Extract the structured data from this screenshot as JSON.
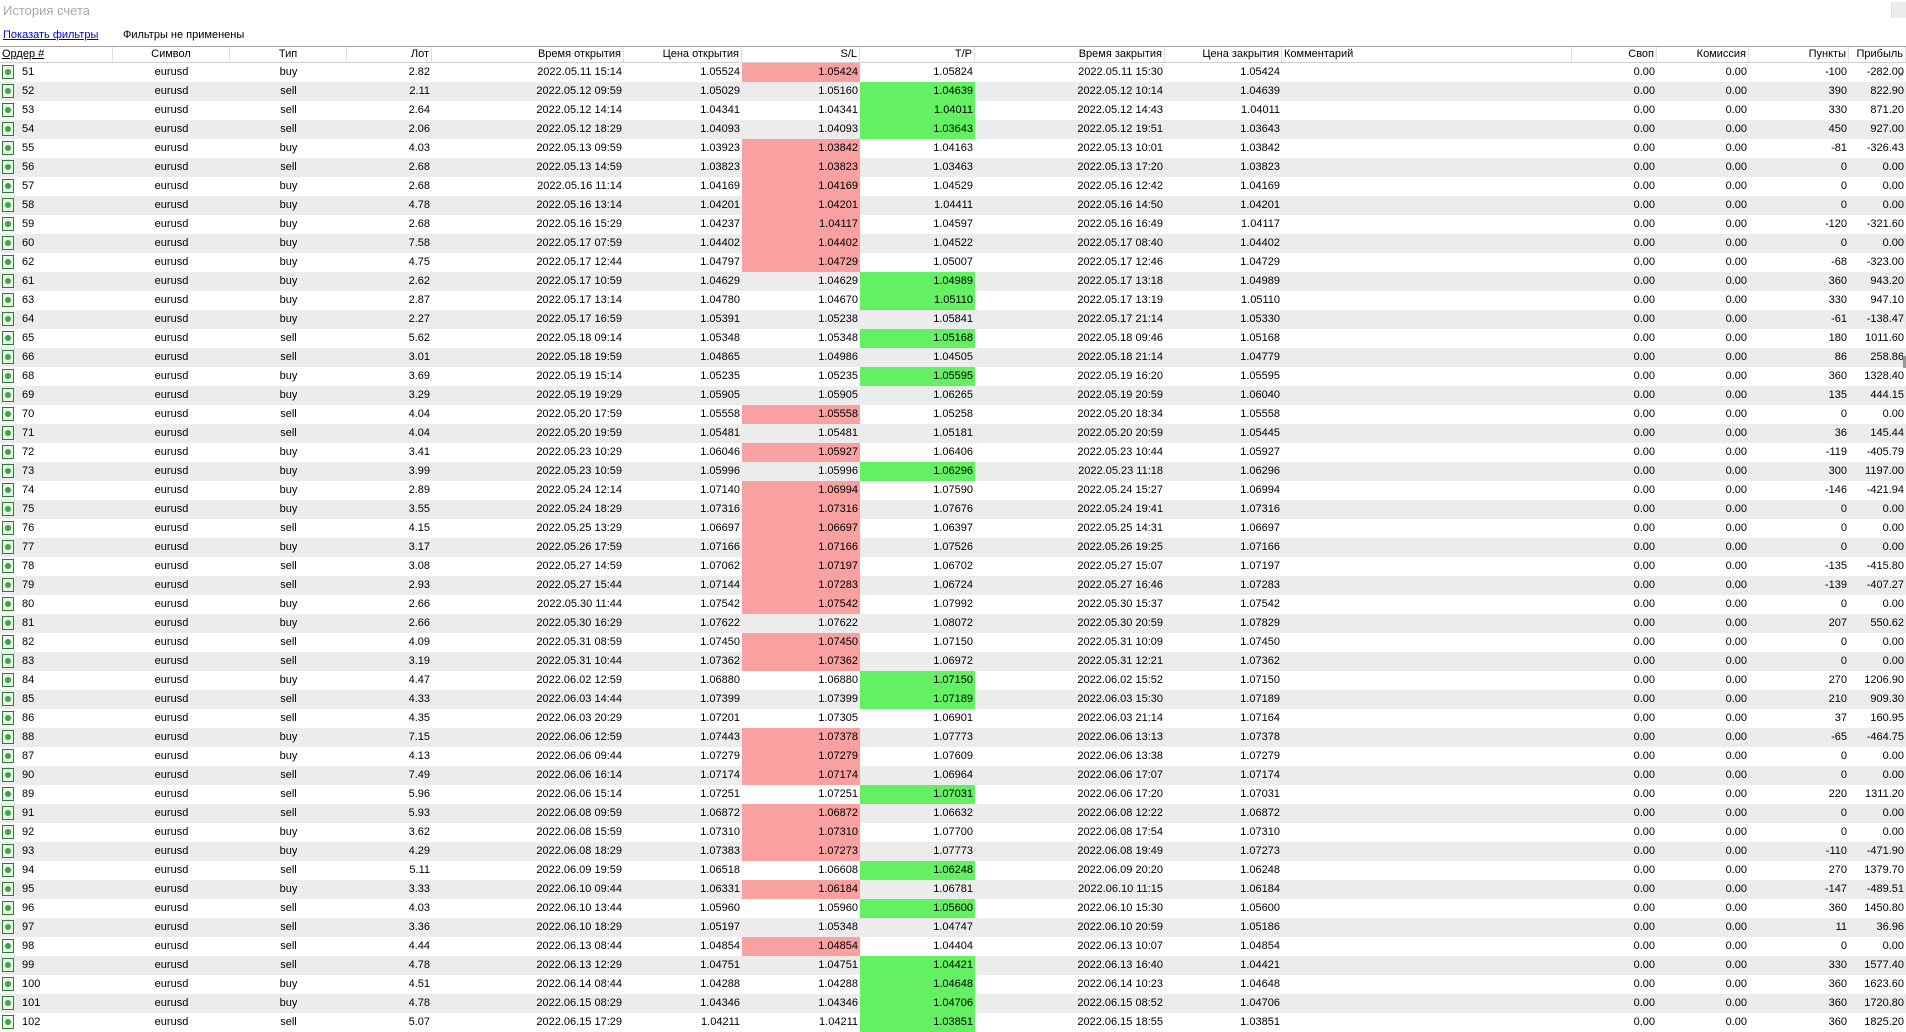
{
  "window": {
    "title": "История счета"
  },
  "filters": {
    "show_link": "Показать фильтры",
    "status": "Фильтры не применены"
  },
  "columns": [
    "Ордер #",
    "Символ",
    "Тип",
    "Лот",
    "Время открытия",
    "Цена открытия",
    "S/L",
    "T/P",
    "Время закрытия",
    "Цена закрытия",
    "Комментарий",
    "Своп",
    "Комиссия",
    "Пункты",
    "Прибыль"
  ],
  "colors": {
    "sl_hit": "#f9a0a0",
    "tp_hit": "#63f063",
    "alt_row": "#ececec"
  },
  "rows": [
    [
      "51",
      "eurusd",
      "buy",
      "2.82",
      "2022.05.11 15:14",
      "1.05524",
      "1.05424",
      "1.05824",
      "2022.05.11 15:30",
      "1.05424",
      "",
      "0.00",
      "0.00",
      "-100",
      "-282.00",
      "sl"
    ],
    [
      "52",
      "eurusd",
      "sell",
      "2.11",
      "2022.05.12 09:59",
      "1.05029",
      "1.05160",
      "1.04639",
      "2022.05.12 10:14",
      "1.04639",
      "",
      "0.00",
      "0.00",
      "390",
      "822.90",
      "tp"
    ],
    [
      "53",
      "eurusd",
      "sell",
      "2.64",
      "2022.05.12 14:14",
      "1.04341",
      "1.04341",
      "1.04011",
      "2022.05.12 14:43",
      "1.04011",
      "",
      "0.00",
      "0.00",
      "330",
      "871.20",
      "tp"
    ],
    [
      "54",
      "eurusd",
      "sell",
      "2.06",
      "2022.05.12 18:29",
      "1.04093",
      "1.04093",
      "1.03643",
      "2022.05.12 19:51",
      "1.03643",
      "",
      "0.00",
      "0.00",
      "450",
      "927.00",
      "tp"
    ],
    [
      "55",
      "eurusd",
      "buy",
      "4.03",
      "2022.05.13 09:59",
      "1.03923",
      "1.03842",
      "1.04163",
      "2022.05.13 10:01",
      "1.03842",
      "",
      "0.00",
      "0.00",
      "-81",
      "-326.43",
      "sl"
    ],
    [
      "56",
      "eurusd",
      "sell",
      "2.68",
      "2022.05.13 14:59",
      "1.03823",
      "1.03823",
      "1.03463",
      "2022.05.13 17:20",
      "1.03823",
      "",
      "0.00",
      "0.00",
      "0",
      "0.00",
      "sl"
    ],
    [
      "57",
      "eurusd",
      "buy",
      "2.68",
      "2022.05.16 11:14",
      "1.04169",
      "1.04169",
      "1.04529",
      "2022.05.16 12:42",
      "1.04169",
      "",
      "0.00",
      "0.00",
      "0",
      "0.00",
      "sl"
    ],
    [
      "58",
      "eurusd",
      "buy",
      "4.78",
      "2022.05.16 13:14",
      "1.04201",
      "1.04201",
      "1.04411",
      "2022.05.16 14:50",
      "1.04201",
      "",
      "0.00",
      "0.00",
      "0",
      "0.00",
      "sl"
    ],
    [
      "59",
      "eurusd",
      "buy",
      "2.68",
      "2022.05.16 15:29",
      "1.04237",
      "1.04117",
      "1.04597",
      "2022.05.16 16:49",
      "1.04117",
      "",
      "0.00",
      "0.00",
      "-120",
      "-321.60",
      "sl"
    ],
    [
      "60",
      "eurusd",
      "buy",
      "7.58",
      "2022.05.17 07:59",
      "1.04402",
      "1.04402",
      "1.04522",
      "2022.05.17 08:40",
      "1.04402",
      "",
      "0.00",
      "0.00",
      "0",
      "0.00",
      "sl"
    ],
    [
      "62",
      "eurusd",
      "buy",
      "4.75",
      "2022.05.17 12:44",
      "1.04797",
      "1.04729",
      "1.05007",
      "2022.05.17 12:46",
      "1.04729",
      "",
      "0.00",
      "0.00",
      "-68",
      "-323.00",
      "sl"
    ],
    [
      "61",
      "eurusd",
      "buy",
      "2.62",
      "2022.05.17 10:59",
      "1.04629",
      "1.04629",
      "1.04989",
      "2022.05.17 13:18",
      "1.04989",
      "",
      "0.00",
      "0.00",
      "360",
      "943.20",
      "tp"
    ],
    [
      "63",
      "eurusd",
      "buy",
      "2.87",
      "2022.05.17 13:14",
      "1.04780",
      "1.04670",
      "1.05110",
      "2022.05.17 13:19",
      "1.05110",
      "",
      "0.00",
      "0.00",
      "330",
      "947.10",
      "tp"
    ],
    [
      "64",
      "eurusd",
      "buy",
      "2.27",
      "2022.05.17 16:59",
      "1.05391",
      "1.05238",
      "1.05841",
      "2022.05.17 21:14",
      "1.05330",
      "",
      "0.00",
      "0.00",
      "-61",
      "-138.47",
      ""
    ],
    [
      "65",
      "eurusd",
      "sell",
      "5.62",
      "2022.05.18 09:14",
      "1.05348",
      "1.05348",
      "1.05168",
      "2022.05.18 09:46",
      "1.05168",
      "",
      "0.00",
      "0.00",
      "180",
      "1011.60",
      "tp"
    ],
    [
      "66",
      "eurusd",
      "sell",
      "3.01",
      "2022.05.18 19:59",
      "1.04865",
      "1.04986",
      "1.04505",
      "2022.05.18 21:14",
      "1.04779",
      "",
      "0.00",
      "0.00",
      "86",
      "258.86",
      ""
    ],
    [
      "68",
      "eurusd",
      "buy",
      "3.69",
      "2022.05.19 15:14",
      "1.05235",
      "1.05235",
      "1.05595",
      "2022.05.19 16:20",
      "1.05595",
      "",
      "0.00",
      "0.00",
      "360",
      "1328.40",
      "tp"
    ],
    [
      "69",
      "eurusd",
      "buy",
      "3.29",
      "2022.05.19 19:29",
      "1.05905",
      "1.05905",
      "1.06265",
      "2022.05.19 20:59",
      "1.06040",
      "",
      "0.00",
      "0.00",
      "135",
      "444.15",
      ""
    ],
    [
      "70",
      "eurusd",
      "sell",
      "4.04",
      "2022.05.20 17:59",
      "1.05558",
      "1.05558",
      "1.05258",
      "2022.05.20 18:34",
      "1.05558",
      "",
      "0.00",
      "0.00",
      "0",
      "0.00",
      "sl"
    ],
    [
      "71",
      "eurusd",
      "sell",
      "4.04",
      "2022.05.20 19:59",
      "1.05481",
      "1.05481",
      "1.05181",
      "2022.05.20 20:59",
      "1.05445",
      "",
      "0.00",
      "0.00",
      "36",
      "145.44",
      ""
    ],
    [
      "72",
      "eurusd",
      "buy",
      "3.41",
      "2022.05.23 10:29",
      "1.06046",
      "1.05927",
      "1.06406",
      "2022.05.23 10:44",
      "1.05927",
      "",
      "0.00",
      "0.00",
      "-119",
      "-405.79",
      "sl"
    ],
    [
      "73",
      "eurusd",
      "buy",
      "3.99",
      "2022.05.23 10:59",
      "1.05996",
      "1.05996",
      "1.06296",
      "2022.05.23 11:18",
      "1.06296",
      "",
      "0.00",
      "0.00",
      "300",
      "1197.00",
      "tp"
    ],
    [
      "74",
      "eurusd",
      "buy",
      "2.89",
      "2022.05.24 12:14",
      "1.07140",
      "1.06994",
      "1.07590",
      "2022.05.24 15:27",
      "1.06994",
      "",
      "0.00",
      "0.00",
      "-146",
      "-421.94",
      "sl"
    ],
    [
      "75",
      "eurusd",
      "buy",
      "3.55",
      "2022.05.24 18:29",
      "1.07316",
      "1.07316",
      "1.07676",
      "2022.05.24 19:41",
      "1.07316",
      "",
      "0.00",
      "0.00",
      "0",
      "0.00",
      "sl"
    ],
    [
      "76",
      "eurusd",
      "sell",
      "4.15",
      "2022.05.25 13:29",
      "1.06697",
      "1.06697",
      "1.06397",
      "2022.05.25 14:31",
      "1.06697",
      "",
      "0.00",
      "0.00",
      "0",
      "0.00",
      "sl"
    ],
    [
      "77",
      "eurusd",
      "buy",
      "3.17",
      "2022.05.26 17:59",
      "1.07166",
      "1.07166",
      "1.07526",
      "2022.05.26 19:25",
      "1.07166",
      "",
      "0.00",
      "0.00",
      "0",
      "0.00",
      "sl"
    ],
    [
      "78",
      "eurusd",
      "sell",
      "3.08",
      "2022.05.27 14:59",
      "1.07062",
      "1.07197",
      "1.06702",
      "2022.05.27 15:07",
      "1.07197",
      "",
      "0.00",
      "0.00",
      "-135",
      "-415.80",
      "sl"
    ],
    [
      "79",
      "eurusd",
      "sell",
      "2.93",
      "2022.05.27 15:44",
      "1.07144",
      "1.07283",
      "1.06724",
      "2022.05.27 16:46",
      "1.07283",
      "",
      "0.00",
      "0.00",
      "-139",
      "-407.27",
      "sl"
    ],
    [
      "80",
      "eurusd",
      "buy",
      "2.66",
      "2022.05.30 11:44",
      "1.07542",
      "1.07542",
      "1.07992",
      "2022.05.30 15:37",
      "1.07542",
      "",
      "0.00",
      "0.00",
      "0",
      "0.00",
      "sl"
    ],
    [
      "81",
      "eurusd",
      "buy",
      "2.66",
      "2022.05.30 16:29",
      "1.07622",
      "1.07622",
      "1.08072",
      "2022.05.30 20:59",
      "1.07829",
      "",
      "0.00",
      "0.00",
      "207",
      "550.62",
      ""
    ],
    [
      "82",
      "eurusd",
      "sell",
      "4.09",
      "2022.05.31 08:59",
      "1.07450",
      "1.07450",
      "1.07150",
      "2022.05.31 10:09",
      "1.07450",
      "",
      "0.00",
      "0.00",
      "0",
      "0.00",
      "sl"
    ],
    [
      "83",
      "eurusd",
      "sell",
      "3.19",
      "2022.05.31 10:44",
      "1.07362",
      "1.07362",
      "1.06972",
      "2022.05.31 12:21",
      "1.07362",
      "",
      "0.00",
      "0.00",
      "0",
      "0.00",
      "sl"
    ],
    [
      "84",
      "eurusd",
      "buy",
      "4.47",
      "2022.06.02 12:59",
      "1.06880",
      "1.06880",
      "1.07150",
      "2022.06.02 15:52",
      "1.07150",
      "",
      "0.00",
      "0.00",
      "270",
      "1206.90",
      "tp"
    ],
    [
      "85",
      "eurusd",
      "sell",
      "4.33",
      "2022.06.03 14:44",
      "1.07399",
      "1.07399",
      "1.07189",
      "2022.06.03 15:30",
      "1.07189",
      "",
      "0.00",
      "0.00",
      "210",
      "909.30",
      "tp"
    ],
    [
      "86",
      "eurusd",
      "sell",
      "4.35",
      "2022.06.03 20:29",
      "1.07201",
      "1.07305",
      "1.06901",
      "2022.06.03 21:14",
      "1.07164",
      "",
      "0.00",
      "0.00",
      "37",
      "160.95",
      ""
    ],
    [
      "88",
      "eurusd",
      "buy",
      "7.15",
      "2022.06.06 12:59",
      "1.07443",
      "1.07378",
      "1.07773",
      "2022.06.06 13:13",
      "1.07378",
      "",
      "0.00",
      "0.00",
      "-65",
      "-464.75",
      "sl"
    ],
    [
      "87",
      "eurusd",
      "buy",
      "4.13",
      "2022.06.06 09:44",
      "1.07279",
      "1.07279",
      "1.07609",
      "2022.06.06 13:38",
      "1.07279",
      "",
      "0.00",
      "0.00",
      "0",
      "0.00",
      "sl"
    ],
    [
      "90",
      "eurusd",
      "sell",
      "7.49",
      "2022.06.06 16:14",
      "1.07174",
      "1.07174",
      "1.06964",
      "2022.06.06 17:07",
      "1.07174",
      "",
      "0.00",
      "0.00",
      "0",
      "0.00",
      "sl"
    ],
    [
      "89",
      "eurusd",
      "sell",
      "5.96",
      "2022.06.06 15:14",
      "1.07251",
      "1.07251",
      "1.07031",
      "2022.06.06 17:20",
      "1.07031",
      "",
      "0.00",
      "0.00",
      "220",
      "1311.20",
      "tp"
    ],
    [
      "91",
      "eurusd",
      "sell",
      "5.93",
      "2022.06.08 09:59",
      "1.06872",
      "1.06872",
      "1.06632",
      "2022.06.08 12:22",
      "1.06872",
      "",
      "0.00",
      "0.00",
      "0",
      "0.00",
      "sl"
    ],
    [
      "92",
      "eurusd",
      "buy",
      "3.62",
      "2022.06.08 15:59",
      "1.07310",
      "1.07310",
      "1.07700",
      "2022.06.08 17:54",
      "1.07310",
      "",
      "0.00",
      "0.00",
      "0",
      "0.00",
      "sl"
    ],
    [
      "93",
      "eurusd",
      "buy",
      "4.29",
      "2022.06.08 18:29",
      "1.07383",
      "1.07273",
      "1.07773",
      "2022.06.08 19:49",
      "1.07273",
      "",
      "0.00",
      "0.00",
      "-110",
      "-471.90",
      "sl"
    ],
    [
      "94",
      "eurusd",
      "sell",
      "5.11",
      "2022.06.09 19:59",
      "1.06518",
      "1.06608",
      "1.06248",
      "2022.06.09 20:20",
      "1.06248",
      "",
      "0.00",
      "0.00",
      "270",
      "1379.70",
      "tp"
    ],
    [
      "95",
      "eurusd",
      "buy",
      "3.33",
      "2022.06.10 09:44",
      "1.06331",
      "1.06184",
      "1.06781",
      "2022.06.10 11:15",
      "1.06184",
      "",
      "0.00",
      "0.00",
      "-147",
      "-489.51",
      "sl"
    ],
    [
      "96",
      "eurusd",
      "sell",
      "4.03",
      "2022.06.10 13:44",
      "1.05960",
      "1.05960",
      "1.05600",
      "2022.06.10 15:30",
      "1.05600",
      "",
      "0.00",
      "0.00",
      "360",
      "1450.80",
      "tp"
    ],
    [
      "97",
      "eurusd",
      "sell",
      "3.36",
      "2022.06.10 18:29",
      "1.05197",
      "1.05348",
      "1.04747",
      "2022.06.10 20:59",
      "1.05186",
      "",
      "0.00",
      "0.00",
      "11",
      "36.96",
      ""
    ],
    [
      "98",
      "eurusd",
      "sell",
      "4.44",
      "2022.06.13 08:44",
      "1.04854",
      "1.04854",
      "1.04404",
      "2022.06.13 10:07",
      "1.04854",
      "",
      "0.00",
      "0.00",
      "0",
      "0.00",
      "sl"
    ],
    [
      "99",
      "eurusd",
      "sell",
      "4.78",
      "2022.06.13 12:29",
      "1.04751",
      "1.04751",
      "1.04421",
      "2022.06.13 16:40",
      "1.04421",
      "",
      "0.00",
      "0.00",
      "330",
      "1577.40",
      "tp"
    ],
    [
      "100",
      "eurusd",
      "buy",
      "4.51",
      "2022.06.14 08:44",
      "1.04288",
      "1.04288",
      "1.04648",
      "2022.06.14 10:23",
      "1.04648",
      "",
      "0.00",
      "0.00",
      "360",
      "1623.60",
      "tp"
    ],
    [
      "101",
      "eurusd",
      "buy",
      "4.78",
      "2022.06.15 08:29",
      "1.04346",
      "1.04346",
      "1.04706",
      "2022.06.15 08:52",
      "1.04706",
      "",
      "0.00",
      "0.00",
      "360",
      "1720.80",
      "tp"
    ],
    [
      "102",
      "eurusd",
      "sell",
      "5.07",
      "2022.06.15 17:29",
      "1.04211",
      "1.04211",
      "1.03851",
      "2022.06.15 18:55",
      "1.03851",
      "",
      "0.00",
      "0.00",
      "360",
      "1825.20",
      "tp"
    ]
  ]
}
